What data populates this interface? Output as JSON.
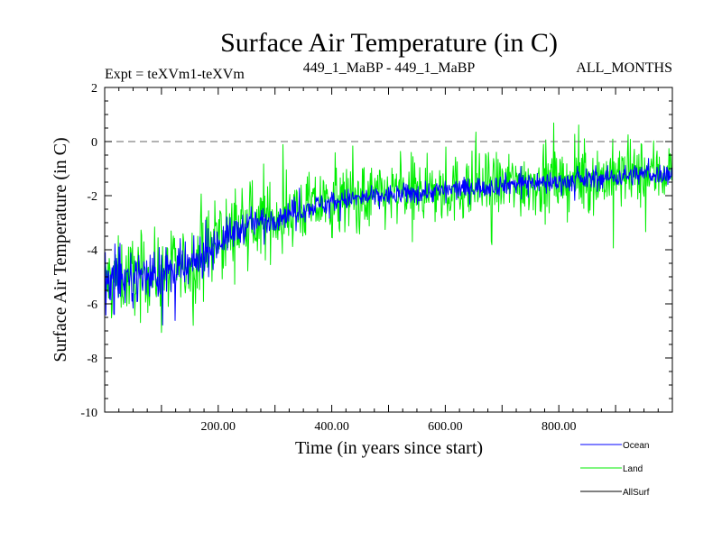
{
  "chart_data": {
    "type": "line",
    "title": "Surface Air Temperature (in C)",
    "subtitle_left": "Expt = teXVm1-teXVm",
    "subtitle_center": "449_1_MaBP - 449_1_MaBP",
    "subtitle_right": "ALL_MONTHS",
    "xlabel": "Time (in years since start)",
    "ylabel": "Surface Air Temperature (in C)",
    "xlim": [
      0,
      1000
    ],
    "ylim": [
      -10,
      2
    ],
    "x_ticks": [
      200,
      400,
      600,
      800
    ],
    "x_tick_labels": [
      "200.00",
      "400.00",
      "600.00",
      "800.00"
    ],
    "y_ticks": [
      -10,
      -8,
      -6,
      -4,
      -2,
      0,
      2
    ],
    "y_tick_labels": [
      "-10",
      "-8",
      "-6",
      "-4",
      "-2",
      "0",
      "2"
    ],
    "reference_line": {
      "y": 0,
      "style": "dashed"
    },
    "series": [
      {
        "name": "Land",
        "color": "#00ee00",
        "x": [
          0,
          50,
          100,
          150,
          200,
          250,
          300,
          350,
          400,
          450,
          500,
          550,
          600,
          650,
          700,
          750,
          800,
          850,
          900,
          950,
          1000
        ],
        "mean": [
          -5.2,
          -4.9,
          -4.8,
          -4.6,
          -3.6,
          -3.1,
          -2.8,
          -2.5,
          -2.2,
          -2.1,
          -2.0,
          -1.9,
          -1.8,
          -1.7,
          -1.6,
          -1.5,
          -1.5,
          -1.4,
          -1.3,
          -1.2,
          -1.1
        ],
        "spread": [
          1.8,
          1.8,
          1.8,
          1.8,
          1.8,
          1.7,
          1.7,
          1.6,
          1.6,
          1.6,
          1.6,
          1.6,
          1.6,
          1.6,
          1.6,
          1.6,
          1.6,
          1.6,
          1.6,
          1.6,
          1.6
        ]
      },
      {
        "name": "Ocean",
        "color": "#0000ff",
        "x": [
          0,
          50,
          100,
          150,
          200,
          250,
          300,
          350,
          400,
          450,
          500,
          550,
          600,
          650,
          700,
          750,
          800,
          850,
          900,
          950,
          1000
        ],
        "mean": [
          -5.3,
          -5.0,
          -4.9,
          -4.7,
          -3.7,
          -3.1,
          -2.8,
          -2.5,
          -2.2,
          -2.1,
          -2.0,
          -1.9,
          -1.8,
          -1.7,
          -1.6,
          -1.5,
          -1.5,
          -1.4,
          -1.3,
          -1.2,
          -1.2
        ],
        "spread": [
          1.2,
          1.2,
          1.2,
          1.1,
          0.9,
          0.7,
          0.6,
          0.55,
          0.5,
          0.5,
          0.5,
          0.5,
          0.5,
          0.5,
          0.5,
          0.5,
          0.5,
          0.5,
          0.5,
          0.5,
          0.5
        ]
      },
      {
        "name": "AllSurf",
        "color": "#000000",
        "x": [],
        "mean": [],
        "spread": []
      }
    ],
    "legend": {
      "placement": "bottom-right",
      "entries": [
        {
          "name": "Ocean",
          "color": "#0000ff"
        },
        {
          "name": "Land",
          "color": "#00ee00"
        },
        {
          "name": "AllSurf",
          "color": "#000000"
        }
      ]
    }
  }
}
